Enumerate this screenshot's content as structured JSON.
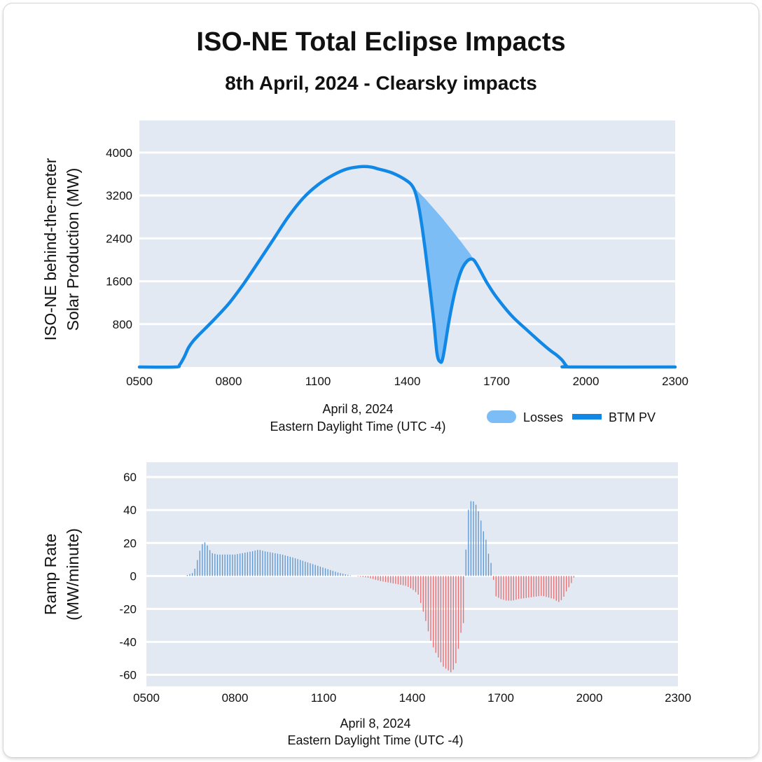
{
  "title": "ISO-NE Total Eclipse Impacts",
  "subtitle": "8th April, 2024 - Clearsky impacts",
  "legend": {
    "losses": "Losses",
    "btm": "BTM PV"
  },
  "colors": {
    "plot_bg": "#e3e9f3",
    "grid": "#ffffff",
    "btm_line": "#1188e6",
    "losses_fill": "#7cbdf5",
    "ramp_positive": "#5b95cf",
    "ramp_negative": "#e86c6c"
  },
  "chart_data": [
    {
      "type": "area",
      "name": "solar_production",
      "ylabel_line1": "ISO-NE  behind-the-meter",
      "ylabel_line2": "Solar Production (MW)",
      "xlabel_line1": "April 8, 2024",
      "xlabel_line2": "Eastern Daylight Time (UTC -4)",
      "x_unit": "hour",
      "xlim": [
        5,
        23
      ],
      "ylim": [
        0,
        4600
      ],
      "x_ticks": [
        5,
        8,
        11,
        14,
        17,
        20,
        23
      ],
      "x_tick_labels": [
        "0500",
        "0800",
        "1100",
        "1400",
        "1700",
        "2000",
        "2300"
      ],
      "y_ticks": [
        800,
        1600,
        2400,
        3200,
        4000
      ],
      "y_tick_labels": [
        "800",
        "1600",
        "2400",
        "3200",
        "4000"
      ],
      "legend_position": "bottom-right",
      "series": [
        {
          "name": "BTM PV",
          "style": "line",
          "x": [
            5.0,
            6.2,
            6.35,
            6.5,
            6.65,
            6.8,
            7.0,
            7.5,
            8.0,
            8.5,
            9.0,
            9.5,
            10.0,
            10.5,
            11.0,
            11.5,
            12.0,
            12.5,
            12.8,
            13.0,
            13.5,
            14.0,
            14.2,
            14.3,
            14.4,
            14.5,
            14.6,
            14.7,
            14.8,
            14.9,
            15.0,
            15.1,
            15.2,
            15.4,
            15.6,
            15.8,
            16.0,
            16.2,
            16.35,
            16.5,
            16.7,
            17.0,
            17.5,
            18.0,
            18.5,
            18.8,
            19.0,
            19.2,
            19.35,
            19.5,
            23.0
          ],
          "y": [
            0,
            0,
            40,
            180,
            360,
            480,
            600,
            880,
            1180,
            1550,
            1960,
            2380,
            2800,
            3150,
            3400,
            3580,
            3700,
            3740,
            3730,
            3700,
            3620,
            3470,
            3350,
            3200,
            2950,
            2600,
            2200,
            1750,
            1300,
            800,
            250,
            100,
            180,
            850,
            1400,
            1780,
            1970,
            2010,
            1900,
            1750,
            1550,
            1300,
            960,
            700,
            450,
            310,
            230,
            130,
            20,
            0,
            0
          ]
        },
        {
          "name": "Losses",
          "style": "fill-between",
          "clearsky_x": [
            14.0,
            14.3,
            14.6,
            14.9,
            15.2,
            15.5,
            15.8,
            16.1,
            16.35
          ],
          "clearsky_y": [
            3470,
            3310,
            3140,
            2950,
            2760,
            2550,
            2340,
            2120,
            1900
          ]
        }
      ]
    },
    {
      "type": "bar",
      "name": "ramp_rate",
      "ylabel_line1": "Ramp Rate",
      "ylabel_line2": "(MW/minute)",
      "xlabel_line1": "April 8, 2024",
      "xlabel_line2": "Eastern Daylight Time (UTC -4)",
      "x_unit": "hour",
      "xlim": [
        5,
        23
      ],
      "ylim": [
        -67,
        69
      ],
      "x_ticks": [
        5,
        8,
        11,
        14,
        17,
        20,
        23
      ],
      "x_tick_labels": [
        "0500",
        "0800",
        "1100",
        "1400",
        "1700",
        "2000",
        "2300"
      ],
      "y_ticks": [
        -60,
        -40,
        -20,
        0,
        20,
        40,
        60
      ],
      "y_tick_labels": [
        "-60",
        "-40",
        "-20",
        "0",
        "20",
        "40",
        "60"
      ],
      "bar_step": 0.085,
      "x_start": 6.3,
      "x_end": 19.5,
      "profile_x": [
        6.3,
        6.6,
        6.7,
        6.85,
        6.95,
        7.05,
        7.2,
        7.4,
        7.6,
        8.0,
        8.3,
        8.6,
        8.8,
        9.0,
        9.3,
        9.6,
        10.0,
        10.5,
        11.0,
        11.5,
        12.0,
        12.5,
        12.9,
        13.2,
        13.5,
        13.8,
        14.0,
        14.2,
        14.35,
        14.5,
        14.6,
        14.75,
        14.9,
        15.05,
        15.2,
        15.35,
        15.5,
        15.6,
        15.7,
        15.79,
        15.8,
        15.9,
        16.0,
        16.1,
        16.2,
        16.3,
        16.4,
        16.5,
        16.6,
        16.72,
        16.8,
        17.0,
        17.2,
        17.4,
        17.6,
        18.0,
        18.4,
        18.6,
        18.8,
        18.95,
        19.1,
        19.2,
        19.4,
        19.5
      ],
      "profile_y": [
        0,
        2,
        8,
        18,
        21,
        19,
        14,
        13,
        13,
        13,
        14,
        15,
        16,
        15,
        14,
        13,
        11,
        8,
        5,
        2,
        0,
        -1,
        -3,
        -4,
        -5,
        -6,
        -8,
        -11,
        -20,
        -30,
        -38,
        -45,
        -50,
        -55,
        -57,
        -59,
        -52,
        -40,
        -29,
        -28,
        10,
        40,
        46,
        45,
        42,
        36,
        28,
        22,
        12,
        5,
        -12,
        -14,
        -15,
        -15,
        -14,
        -13,
        -12,
        -13,
        -14,
        -16,
        -14,
        -10,
        -4,
        0
      ]
    }
  ]
}
